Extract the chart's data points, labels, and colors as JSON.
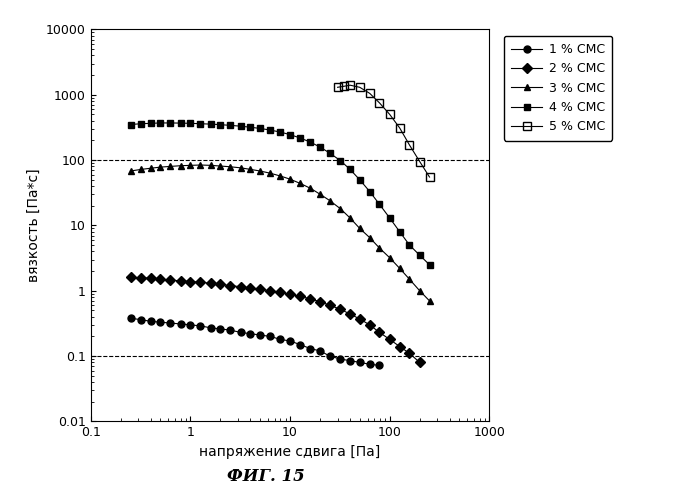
{
  "title": "",
  "xlabel": "напряжение сдвига [Па]",
  "ylabel": "вязкость [Па*с]",
  "caption": "ФИГ. 15",
  "xlim": [
    0.1,
    1000
  ],
  "ylim": [
    0.01,
    10000
  ],
  "hlines": [
    0.1,
    100
  ],
  "series": [
    {
      "label": "1 % СМС",
      "marker": "o",
      "color": "black",
      "fillstyle": "full",
      "markersize": 5,
      "x": [
        0.25,
        0.32,
        0.4,
        0.5,
        0.63,
        0.8,
        1.0,
        1.26,
        1.6,
        2.0,
        2.5,
        3.2,
        4.0,
        5.0,
        6.3,
        8.0,
        10.0,
        12.6,
        16.0,
        20.0,
        25.0,
        32.0,
        40.0,
        50.0,
        63.0,
        79.0
      ],
      "y": [
        0.38,
        0.36,
        0.34,
        0.33,
        0.32,
        0.31,
        0.3,
        0.29,
        0.27,
        0.26,
        0.25,
        0.23,
        0.22,
        0.21,
        0.2,
        0.18,
        0.17,
        0.15,
        0.13,
        0.12,
        0.1,
        0.09,
        0.085,
        0.08,
        0.075,
        0.072
      ]
    },
    {
      "label": "2 % СМС",
      "marker": "D",
      "color": "black",
      "fillstyle": "full",
      "markersize": 5,
      "x": [
        0.25,
        0.32,
        0.4,
        0.5,
        0.63,
        0.8,
        1.0,
        1.26,
        1.6,
        2.0,
        2.5,
        3.2,
        4.0,
        5.0,
        6.3,
        8.0,
        10.0,
        12.6,
        16.0,
        20.0,
        25.0,
        32.0,
        40.0,
        50.0,
        63.0,
        79.0,
        100.0,
        126.0,
        158.0,
        200.0
      ],
      "y": [
        1.6,
        1.58,
        1.55,
        1.5,
        1.45,
        1.42,
        1.38,
        1.35,
        1.3,
        1.25,
        1.2,
        1.15,
        1.1,
        1.05,
        1.0,
        0.95,
        0.88,
        0.82,
        0.75,
        0.68,
        0.6,
        0.52,
        0.44,
        0.37,
        0.3,
        0.23,
        0.18,
        0.14,
        0.11,
        0.08
      ]
    },
    {
      "label": "3 % СМС",
      "marker": "^",
      "color": "black",
      "fillstyle": "full",
      "markersize": 5,
      "x": [
        0.25,
        0.32,
        0.4,
        0.5,
        0.63,
        0.8,
        1.0,
        1.26,
        1.6,
        2.0,
        2.5,
        3.2,
        4.0,
        5.0,
        6.3,
        8.0,
        10.0,
        12.6,
        16.0,
        20.0,
        25.0,
        32.0,
        40.0,
        50.0,
        63.0,
        79.0,
        100.0,
        126.0,
        158.0,
        200.0,
        251.0
      ],
      "y": [
        68.0,
        72.0,
        75.0,
        78.0,
        80.0,
        82.0,
        83.0,
        84.0,
        83.0,
        81.0,
        79.0,
        76.0,
        72.0,
        68.0,
        63.0,
        57.0,
        51.0,
        44.0,
        37.0,
        30.0,
        24.0,
        18.0,
        13.0,
        9.0,
        6.5,
        4.5,
        3.2,
        2.2,
        1.5,
        1.0,
        0.7
      ]
    },
    {
      "label": "4 % СМС",
      "marker": "s",
      "color": "black",
      "fillstyle": "full",
      "markersize": 5,
      "x": [
        0.25,
        0.32,
        0.4,
        0.5,
        0.63,
        0.8,
        1.0,
        1.26,
        1.6,
        2.0,
        2.5,
        3.2,
        4.0,
        5.0,
        6.3,
        8.0,
        10.0,
        12.6,
        16.0,
        20.0,
        25.0,
        32.0,
        40.0,
        50.0,
        63.0,
        79.0,
        100.0,
        126.0,
        158.0,
        200.0,
        251.0
      ],
      "y": [
        350.0,
        360.0,
        365.0,
        370.0,
        370.0,
        368.0,
        365.0,
        360.0,
        355.0,
        348.0,
        340.0,
        330.0,
        318.0,
        305.0,
        288.0,
        268.0,
        245.0,
        218.0,
        188.0,
        158.0,
        128.0,
        98.0,
        72.0,
        50.0,
        33.0,
        21.0,
        13.0,
        8.0,
        5.0,
        3.5,
        2.5
      ]
    },
    {
      "label": "5 % СМС",
      "marker": "s",
      "color": "black",
      "fillstyle": "none",
      "markersize": 6,
      "x": [
        30.0,
        35.0,
        40.0,
        50.0,
        63.0,
        79.0,
        100.0,
        126.0,
        158.0,
        200.0,
        251.0
      ],
      "y": [
        1300.0,
        1350.0,
        1400.0,
        1300.0,
        1050.0,
        750.0,
        500.0,
        310.0,
        170.0,
        95.0,
        55.0
      ]
    }
  ],
  "background_color": "#ffffff",
  "legend_outside": true
}
